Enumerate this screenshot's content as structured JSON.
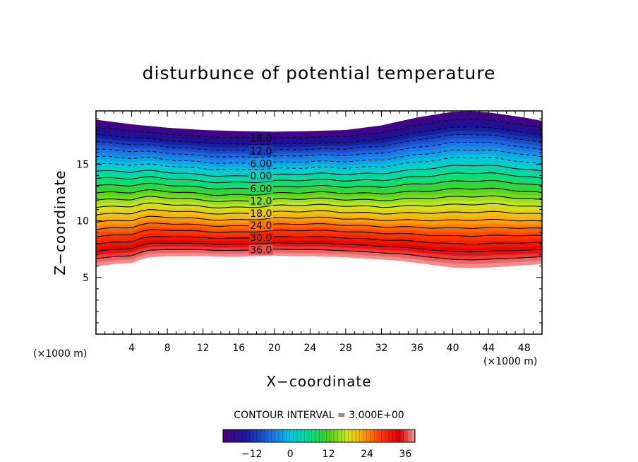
{
  "chart_data": {
    "type": "contour",
    "title": "disturbunce of potential temperature",
    "xlabel": "X−coordinate",
    "ylabel": "Z−coordinate",
    "xunit": "(×1000 m)",
    "yunit": "(×1000 m)",
    "xlim": [
      0,
      50
    ],
    "ylim": [
      0,
      19.7
    ],
    "xticks": [
      4,
      8,
      12,
      16,
      20,
      24,
      28,
      32,
      36,
      40,
      44,
      48
    ],
    "yticks": [
      5,
      10,
      15
    ],
    "contour_interval_label": "CONTOUR INTERVAL = 3.000E+00",
    "contour_interval": 3,
    "value_range": [
      -21,
      39
    ],
    "contour_labels": [
      "18.0",
      "12.0",
      "6.00",
      "0.00",
      "6.00",
      "12.0",
      "18.0",
      "24.0",
      "30.0",
      "36.0"
    ],
    "colorbar": {
      "ticks": [
        -12,
        0,
        12,
        24,
        36
      ],
      "tick_labels": [
        "−12",
        "0",
        "12",
        "24",
        "36"
      ],
      "range": [
        -21,
        39
      ]
    },
    "bottom_boundary": {
      "x": [
        0,
        2,
        4,
        5,
        6,
        7,
        8,
        10,
        12,
        14,
        16,
        18,
        20,
        22,
        24,
        26,
        28,
        30,
        32,
        34,
        36,
        38,
        40,
        42,
        44,
        46,
        48,
        50
      ],
      "z": [
        6.0,
        6.2,
        6.3,
        6.6,
        6.8,
        6.85,
        6.9,
        6.9,
        6.9,
        6.85,
        6.85,
        6.9,
        6.95,
        6.9,
        6.9,
        6.85,
        6.8,
        6.7,
        6.6,
        6.5,
        6.3,
        6.1,
        5.9,
        5.85,
        5.9,
        6.0,
        6.1,
        6.2
      ]
    },
    "top_boundary": {
      "x": [
        0,
        4,
        8,
        12,
        16,
        20,
        24,
        28,
        32,
        36,
        40,
        42,
        44,
        48,
        50
      ],
      "z": [
        18.9,
        18.5,
        18.2,
        18.0,
        17.9,
        17.85,
        17.9,
        18.0,
        18.4,
        19.1,
        19.6,
        19.65,
        19.55,
        19.1,
        18.8
      ]
    }
  }
}
